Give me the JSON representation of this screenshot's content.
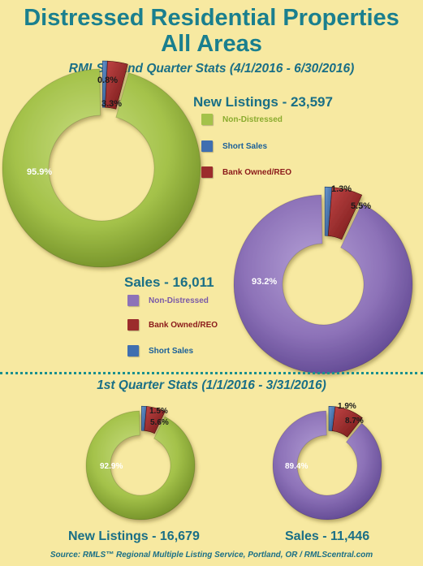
{
  "title_line1": "Distressed Residential Properties",
  "title_line2": "All Areas",
  "q2_subtitle": "RMLS™ 2nd Quarter Stats (4/1/2016 - 6/30/2016)",
  "q1_subtitle": "1st Quarter Stats (1/1/2016 - 3/31/2016)",
  "footer": "Source: RMLS™ Regional Multiple Listing Service, Portland, OR / RMLScentral.com",
  "colors": {
    "green": "#a4c24a",
    "purple": "#8d72b8",
    "red": "#9b2c2c",
    "blue": "#3f6fb0",
    "teal": "#1a7f8e",
    "background": "#f7e9a1"
  },
  "legend_listings": [
    {
      "label": "Non-Distressed",
      "color": "#8aab2e",
      "swatch": "#a4c24a"
    },
    {
      "label": "Short Sales",
      "color": "#1a5f99",
      "swatch": "#3f6fb0"
    },
    {
      "label": "Bank Owned/REO",
      "color": "#8b1a1a",
      "swatch": "#9b2c2c"
    }
  ],
  "legend_sales": [
    {
      "label": "Non-Distressed",
      "color": "#7a5aa8",
      "swatch": "#8d72b8"
    },
    {
      "label": "Bank Owned/REO",
      "color": "#8b1a1a",
      "swatch": "#9b2c2c"
    },
    {
      "label": "Short Sales",
      "color": "#1a5f99",
      "swatch": "#3f6fb0"
    }
  ],
  "chart_data": [
    {
      "type": "pie",
      "title": "New Listings - 23,597",
      "period": "2nd Quarter 2016",
      "slices": [
        {
          "name": "Non-Distressed",
          "value": 95.9,
          "label": "95.9%"
        },
        {
          "name": "Short Sales",
          "value": 0.8,
          "label": "0.8%"
        },
        {
          "name": "Bank Owned/REO",
          "value": 3.3,
          "label": "3.3%"
        }
      ]
    },
    {
      "type": "pie",
      "title": "Sales - 16,011",
      "period": "2nd Quarter 2016",
      "slices": [
        {
          "name": "Non-Distressed",
          "value": 93.2,
          "label": "93.2%"
        },
        {
          "name": "Short Sales",
          "value": 1.3,
          "label": "1.3%"
        },
        {
          "name": "Bank Owned/REO",
          "value": 5.5,
          "label": "5.5%"
        }
      ]
    },
    {
      "type": "pie",
      "title": "New Listings - 16,679",
      "period": "1st Quarter 2016",
      "slices": [
        {
          "name": "Non-Distressed",
          "value": 92.9,
          "label": "92.9%"
        },
        {
          "name": "Short Sales",
          "value": 1.5,
          "label": "1.5%"
        },
        {
          "name": "Bank Owned/REO",
          "value": 5.6,
          "label": "5.6%"
        }
      ]
    },
    {
      "type": "pie",
      "title": "Sales - 11,446",
      "period": "1st Quarter 2016",
      "slices": [
        {
          "name": "Non-Distressed",
          "value": 89.4,
          "label": "89.4%"
        },
        {
          "name": "Short Sales",
          "value": 1.9,
          "label": "1.9%"
        },
        {
          "name": "Bank Owned/REO",
          "value": 8.7,
          "label": "8.7%"
        }
      ]
    }
  ]
}
